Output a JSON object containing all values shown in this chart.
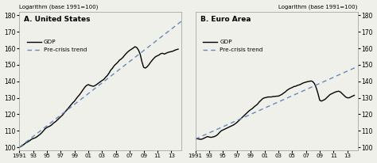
{
  "title_left": "A. United States",
  "title_right": "B. Euro Area",
  "ylabel_left": "Logarithm (base 1991=100)",
  "ylabel_right": "Logarithm (base 1991=100)",
  "legend_gdp": "GDP",
  "legend_trend": "Pre-crisis trend",
  "xtick_labels": [
    "1991",
    "93",
    "95",
    "97",
    "99",
    "01",
    "03",
    "05",
    "07",
    "09",
    "11",
    "13"
  ],
  "xtick_positions": [
    1991,
    1993,
    1995,
    1997,
    1999,
    2001,
    2003,
    2005,
    2007,
    2009,
    2011,
    2013
  ],
  "yticks": [
    100,
    110,
    120,
    130,
    140,
    150,
    160,
    170,
    180
  ],
  "ylim": [
    98,
    182
  ],
  "xlim": [
    1991,
    2014.5
  ],
  "gdp_color": "#000000",
  "trend_color": "#6688bb",
  "background_color": "#f0f0eb",
  "us_gdp_x": [
    1991.0,
    1991.25,
    1991.5,
    1991.75,
    1992.0,
    1992.25,
    1992.5,
    1992.75,
    1993.0,
    1993.25,
    1993.5,
    1993.75,
    1994.0,
    1994.25,
    1994.5,
    1994.75,
    1995.0,
    1995.25,
    1995.5,
    1995.75,
    1996.0,
    1996.25,
    1996.5,
    1996.75,
    1997.0,
    1997.25,
    1997.5,
    1997.75,
    1998.0,
    1998.25,
    1998.5,
    1998.75,
    1999.0,
    1999.25,
    1999.5,
    1999.75,
    2000.0,
    2000.25,
    2000.5,
    2000.75,
    2001.0,
    2001.25,
    2001.5,
    2001.75,
    2002.0,
    2002.25,
    2002.5,
    2002.75,
    2003.0,
    2003.25,
    2003.5,
    2003.75,
    2004.0,
    2004.25,
    2004.5,
    2004.75,
    2005.0,
    2005.25,
    2005.5,
    2005.75,
    2006.0,
    2006.25,
    2006.5,
    2006.75,
    2007.0,
    2007.25,
    2007.5,
    2007.75,
    2008.0,
    2008.25,
    2008.5,
    2008.75,
    2009.0,
    2009.25,
    2009.5,
    2009.75,
    2010.0,
    2010.25,
    2010.5,
    2010.75,
    2011.0,
    2011.25,
    2011.5,
    2011.75,
    2012.0,
    2012.25,
    2012.5,
    2012.75,
    2013.0,
    2013.25,
    2013.5,
    2013.75,
    2014.0
  ],
  "us_gdp_y": [
    100.0,
    100.5,
    101.2,
    102.0,
    102.8,
    103.3,
    104.0,
    104.8,
    105.3,
    105.6,
    106.2,
    107.0,
    107.8,
    108.8,
    110.0,
    111.2,
    112.0,
    112.5,
    113.0,
    113.8,
    114.8,
    115.5,
    116.5,
    117.5,
    118.5,
    119.5,
    120.8,
    122.0,
    123.2,
    124.5,
    125.8,
    127.0,
    128.0,
    129.5,
    130.8,
    132.0,
    133.5,
    135.0,
    136.5,
    137.5,
    138.0,
    137.5,
    137.2,
    137.0,
    137.5,
    138.2,
    139.0,
    139.8,
    140.5,
    141.2,
    142.5,
    143.5,
    145.0,
    146.8,
    148.0,
    149.5,
    150.5,
    151.5,
    152.8,
    153.5,
    154.5,
    155.8,
    157.0,
    158.0,
    158.8,
    159.5,
    160.2,
    161.0,
    160.5,
    159.0,
    156.5,
    152.0,
    148.5,
    148.0,
    148.8,
    150.0,
    151.5,
    152.8,
    154.0,
    155.0,
    155.5,
    156.0,
    156.8,
    157.0,
    156.5,
    157.0,
    157.5,
    157.8,
    158.0,
    158.3,
    158.8,
    159.2,
    159.5
  ],
  "us_trend_x": [
    1991.0,
    2014.5
  ],
  "us_trend_y": [
    100.0,
    176.5
  ],
  "eu_gdp_x": [
    1991.0,
    1991.25,
    1991.5,
    1991.75,
    1992.0,
    1992.25,
    1992.5,
    1992.75,
    1993.0,
    1993.25,
    1993.5,
    1993.75,
    1994.0,
    1994.25,
    1994.5,
    1994.75,
    1995.0,
    1995.25,
    1995.5,
    1995.75,
    1996.0,
    1996.25,
    1996.5,
    1996.75,
    1997.0,
    1997.25,
    1997.5,
    1997.75,
    1998.0,
    1998.25,
    1998.5,
    1998.75,
    1999.0,
    1999.25,
    1999.5,
    1999.75,
    2000.0,
    2000.25,
    2000.5,
    2000.75,
    2001.0,
    2001.25,
    2001.5,
    2001.75,
    2002.0,
    2002.25,
    2002.5,
    2002.75,
    2003.0,
    2003.25,
    2003.5,
    2003.75,
    2004.0,
    2004.25,
    2004.5,
    2004.75,
    2005.0,
    2005.25,
    2005.5,
    2005.75,
    2006.0,
    2006.25,
    2006.5,
    2006.75,
    2007.0,
    2007.25,
    2007.5,
    2007.75,
    2008.0,
    2008.25,
    2008.5,
    2008.75,
    2009.0,
    2009.25,
    2009.5,
    2009.75,
    2010.0,
    2010.25,
    2010.5,
    2010.75,
    2011.0,
    2011.25,
    2011.5,
    2011.75,
    2012.0,
    2012.25,
    2012.5,
    2012.75,
    2013.0,
    2013.25,
    2013.5,
    2013.75,
    2014.0
  ],
  "eu_gdp_y": [
    105.0,
    105.2,
    105.0,
    104.8,
    105.0,
    105.5,
    106.0,
    106.5,
    106.2,
    106.0,
    106.2,
    106.5,
    107.0,
    107.8,
    109.0,
    110.0,
    110.5,
    111.0,
    111.5,
    112.0,
    112.5,
    113.0,
    113.5,
    114.2,
    115.0,
    116.0,
    117.0,
    118.0,
    119.0,
    120.0,
    121.0,
    122.0,
    122.8,
    123.5,
    124.5,
    125.3,
    126.2,
    127.5,
    128.5,
    129.5,
    130.0,
    130.2,
    130.5,
    130.5,
    130.5,
    130.8,
    130.8,
    131.0,
    131.0,
    131.5,
    132.0,
    132.8,
    133.5,
    134.5,
    135.2,
    135.8,
    136.2,
    136.8,
    137.0,
    137.5,
    137.8,
    138.2,
    138.8,
    139.2,
    139.5,
    139.8,
    140.0,
    140.2,
    139.8,
    138.5,
    136.0,
    132.5,
    128.5,
    128.0,
    128.5,
    129.0,
    130.0,
    131.0,
    132.0,
    132.5,
    133.0,
    133.5,
    133.8,
    134.0,
    133.5,
    132.5,
    131.5,
    130.5,
    130.0,
    130.0,
    130.5,
    131.0,
    131.5
  ],
  "eu_trend_x": [
    1991.0,
    2014.5
  ],
  "eu_trend_y": [
    105.0,
    149.0
  ]
}
